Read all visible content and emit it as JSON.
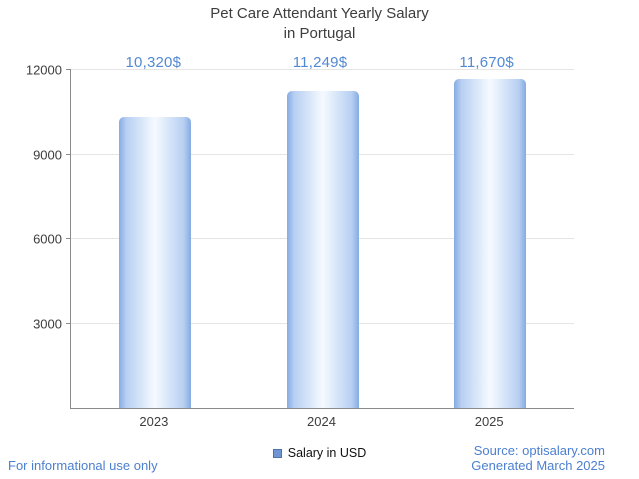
{
  "header": {
    "title_line1": "Pet Care Attendant Yearly Salary",
    "title_line2": "in Portugal"
  },
  "chart_data": {
    "type": "bar",
    "title": "Pet Care Attendant Yearly Salary in Portugal",
    "categories": [
      "2023",
      "2024",
      "2025"
    ],
    "values": [
      10320,
      11249,
      11670
    ],
    "value_labels": [
      "10,320$",
      "11,249$",
      "11,670$"
    ],
    "xlabel": "",
    "ylabel": "",
    "ylim": [
      0,
      12000
    ],
    "yticks": [
      3000,
      6000,
      9000,
      12000
    ],
    "grid": true,
    "legend": [
      {
        "label": "Salary in USD",
        "color": "#6f96d2"
      }
    ],
    "legend_position": "bottom"
  },
  "footer": {
    "disclaimer": "For informational use only",
    "source": "Source: optisalary.com",
    "generated": "Generated March 2025"
  },
  "colors": {
    "value_label": "#5289d4",
    "axis": "#8a8a8a",
    "grid": "#e5e5e5",
    "bar_edge": "#85abe2",
    "bar_light": "#b7cff2",
    "bar_center": "#f6faff",
    "footer_text": "#4b7fd0",
    "title_text": "#3d3d3d"
  }
}
